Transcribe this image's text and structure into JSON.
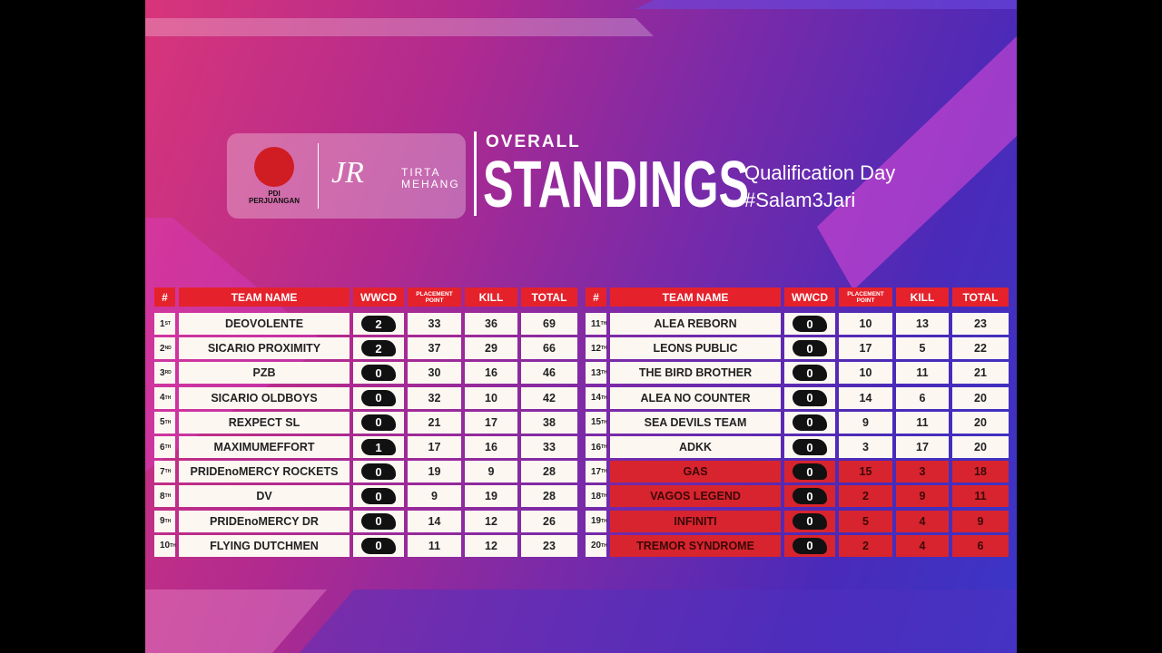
{
  "header": {
    "logo_1": [
      "PDI",
      "PERJUANGAN"
    ],
    "logo_2_mark": "JR",
    "logo_2_text": [
      "TIRTA",
      "MEHANG"
    ],
    "kicker": "OVERALL",
    "title": "STANDINGS",
    "subtitle": "Qualification Day",
    "hashtag": "#Salam3Jari"
  },
  "columns": [
    "#",
    "TEAM NAME",
    "WWCD",
    "PLACEMENT POINT",
    "KILL",
    "TOTAL"
  ],
  "tables": [
    {
      "rows": [
        {
          "rank": 1,
          "suffix": "ST",
          "team": "DEOVOLENTE",
          "wwcd": 2,
          "placement": 33,
          "kill": 36,
          "total": 69
        },
        {
          "rank": 2,
          "suffix": "ND",
          "team": "SICARIO PROXIMITY",
          "wwcd": 2,
          "placement": 37,
          "kill": 29,
          "total": 66
        },
        {
          "rank": 3,
          "suffix": "RD",
          "team": "PZB",
          "wwcd": 0,
          "placement": 30,
          "kill": 16,
          "total": 46
        },
        {
          "rank": 4,
          "suffix": "TH",
          "team": "SICARIO OLDBOYS",
          "wwcd": 0,
          "placement": 32,
          "kill": 10,
          "total": 42
        },
        {
          "rank": 5,
          "suffix": "TH",
          "team": "REXPECT SL",
          "wwcd": 0,
          "placement": 21,
          "kill": 17,
          "total": 38
        },
        {
          "rank": 6,
          "suffix": "TH",
          "team": "MAXIMUMEFFORT",
          "wwcd": 1,
          "placement": 17,
          "kill": 16,
          "total": 33
        },
        {
          "rank": 7,
          "suffix": "TH",
          "team": "PRIDEnoMERCY ROCKETS",
          "wwcd": 0,
          "placement": 19,
          "kill": 9,
          "total": 28
        },
        {
          "rank": 8,
          "suffix": "TH",
          "team": "DV",
          "wwcd": 0,
          "placement": 9,
          "kill": 19,
          "total": 28
        },
        {
          "rank": 9,
          "suffix": "TH",
          "team": "PRIDEnoMERCY DR",
          "wwcd": 0,
          "placement": 14,
          "kill": 12,
          "total": 26
        },
        {
          "rank": 10,
          "suffix": "TH",
          "team": "FLYING DUTCHMEN",
          "wwcd": 0,
          "placement": 11,
          "kill": 12,
          "total": 23
        }
      ]
    },
    {
      "rows": [
        {
          "rank": 11,
          "suffix": "TH",
          "team": "ALEA REBORN",
          "wwcd": 0,
          "placement": 10,
          "kill": 13,
          "total": 23
        },
        {
          "rank": 12,
          "suffix": "TH",
          "team": "LEONS PUBLIC",
          "wwcd": 0,
          "placement": 17,
          "kill": 5,
          "total": 22
        },
        {
          "rank": 13,
          "suffix": "TH",
          "team": "THE BIRD BROTHER",
          "wwcd": 0,
          "placement": 10,
          "kill": 11,
          "total": 21
        },
        {
          "rank": 14,
          "suffix": "TH",
          "team": "ALEA NO COUNTER",
          "wwcd": 0,
          "placement": 14,
          "kill": 6,
          "total": 20
        },
        {
          "rank": 15,
          "suffix": "TH",
          "team": "SEA DEVILS TEAM",
          "wwcd": 0,
          "placement": 9,
          "kill": 11,
          "total": 20
        },
        {
          "rank": 16,
          "suffix": "TH",
          "team": "ADKK",
          "wwcd": 0,
          "placement": 3,
          "kill": 17,
          "total": 20
        },
        {
          "rank": 17,
          "suffix": "TH",
          "team": "GAS",
          "wwcd": 0,
          "placement": 15,
          "kill": 3,
          "total": 18,
          "highlight": true
        },
        {
          "rank": 18,
          "suffix": "TH",
          "team": "VAGOS LEGEND",
          "wwcd": 0,
          "placement": 2,
          "kill": 9,
          "total": 11,
          "highlight": true
        },
        {
          "rank": 19,
          "suffix": "TH",
          "team": "INFINITI",
          "wwcd": 0,
          "placement": 5,
          "kill": 4,
          "total": 9,
          "highlight": true
        },
        {
          "rank": 20,
          "suffix": "TH",
          "team": "TREMOR SYNDROME",
          "wwcd": 0,
          "placement": 2,
          "kill": 4,
          "total": 6,
          "highlight": true
        }
      ]
    }
  ]
}
